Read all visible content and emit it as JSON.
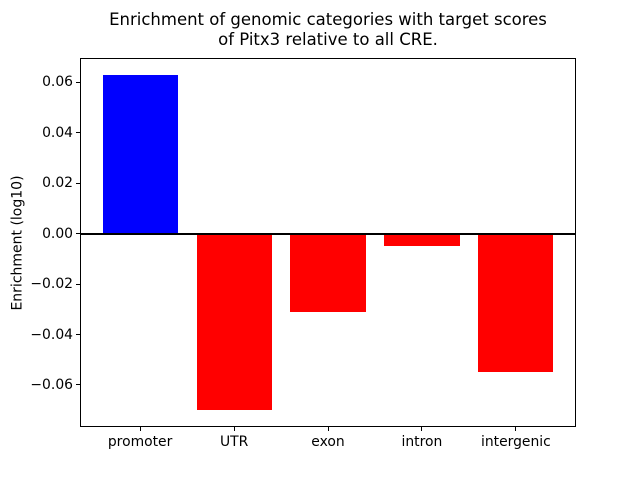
{
  "figure": {
    "title": "Enrichment of genomic categories with target scores\nof Pitx3 relative to all CRE.",
    "background": "#ffffff"
  },
  "chart_data": {
    "type": "bar",
    "title": "Enrichment of genomic categories with target scores of Pitx3 relative to all CRE.",
    "categories": [
      "promoter",
      "UTR",
      "exon",
      "intron",
      "intergenic"
    ],
    "values": [
      0.063,
      -0.07,
      -0.031,
      -0.005,
      -0.055
    ],
    "bar_colors": [
      "#0000ff",
      "#ff0000",
      "#ff0000",
      "#ff0000",
      "#ff0000"
    ],
    "positive_color": "#0000ff",
    "negative_color": "#ff0000",
    "xlabel": "",
    "ylabel": "Enrichment (log10)",
    "ylim": [
      -0.0767,
      0.0697
    ],
    "yticks": [
      0.06,
      0.04,
      0.02,
      0.0,
      -0.02,
      -0.04,
      -0.06
    ],
    "ytick_labels": [
      "0.06",
      "0.04",
      "0.02",
      "0.00",
      "−0.02",
      "−0.04",
      "−0.06"
    ],
    "zero_line": true,
    "grid": false,
    "legend": null,
    "frame_color": "#000000",
    "text_color": "#000000"
  }
}
